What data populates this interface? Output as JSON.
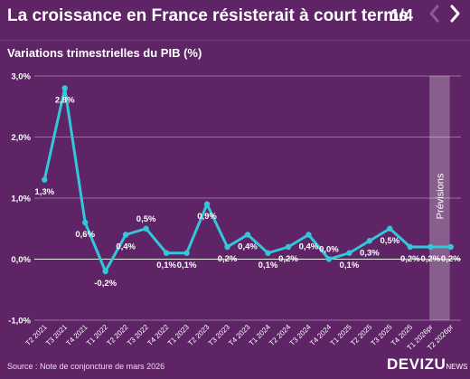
{
  "header": {
    "title": "La croissance en France résisterait à court terme",
    "pager": "1/4",
    "prev_icon": "chevron-left",
    "next_icon": "chevron-right"
  },
  "footer": {
    "source": "Source : Note de conjoncture de mars 2026",
    "brand": "DEVIZU",
    "brand_suffix": "NEWS"
  },
  "colors": {
    "background": "#5e2466",
    "line": "#33c7d9",
    "forecast_band": "#8f6a93"
  },
  "chart_data": {
    "type": "line",
    "title": "Variations trimestrielles du PIB (%)",
    "categories": [
      "T2 2021",
      "T3 2021",
      "T4 2021",
      "T1 2022",
      "T2 2022",
      "T3 2022",
      "T4 2022",
      "T1 2023",
      "T2 2023",
      "T3 2023",
      "T4 2023",
      "T1 2024",
      "T2 2024",
      "T3 2024",
      "T4 2024",
      "T1 2025",
      "T2 2025",
      "T3 2025",
      "T4 2025",
      "T1 2026pr",
      "T2 2026pr"
    ],
    "values": [
      1.3,
      2.8,
      0.6,
      -0.2,
      0.4,
      0.5,
      0.1,
      0.1,
      0.9,
      0.2,
      0.4,
      0.1,
      0.2,
      0.4,
      0.0,
      0.1,
      0.3,
      0.5,
      0.2,
      0.2,
      0.2
    ],
    "data_labels": [
      "1,3%",
      "2,8%",
      "0,6%",
      "-0,2%",
      "0,4%",
      "0,5%",
      "0,1%",
      "0,1%",
      "0,9%",
      "0,2%",
      "0,4%",
      "0,1%",
      "0,2%",
      "0,4%",
      "0,0%",
      "0,1%",
      "0,3%",
      "0,5%",
      "0,2%",
      "0,2%",
      "0,2%"
    ],
    "label_position": [
      "below",
      "below",
      "below",
      "below",
      "below",
      "above",
      "below",
      "below",
      "below",
      "below",
      "below",
      "below",
      "below",
      "below",
      "above",
      "below",
      "below",
      "below",
      "below",
      "below",
      "below"
    ],
    "ylim": [
      -1.0,
      3.0
    ],
    "yticks": [
      -1.0,
      0.0,
      1.0,
      2.0,
      3.0
    ],
    "ytick_labels": [
      "-1,0%",
      "0,0%",
      "1,0%",
      "2,0%",
      "3,0%"
    ],
    "grid": true,
    "forecast": {
      "label": "Prévisions",
      "start_category": "T1 2026pr",
      "end_category": "T2 2026pr"
    }
  }
}
